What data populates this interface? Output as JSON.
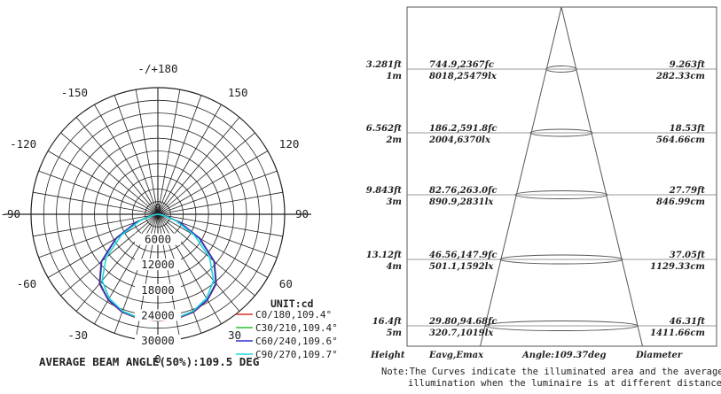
{
  "chart_data": [
    {
      "type": "polar",
      "angle_labels": [
        {
          "deg": 0,
          "text": "0"
        },
        {
          "deg": 30,
          "text": "30"
        },
        {
          "deg": 60,
          "text": "60"
        },
        {
          "deg": 90,
          "text": "90"
        },
        {
          "deg": 120,
          "text": "120"
        },
        {
          "deg": 150,
          "text": "150"
        },
        {
          "deg": 180,
          "text": "-/+180"
        },
        {
          "deg": -150,
          "text": "-150"
        },
        {
          "deg": -120,
          "text": "-120"
        },
        {
          "deg": -90,
          "text": "-90"
        },
        {
          "deg": -60,
          "text": "-60"
        },
        {
          "deg": -30,
          "text": "-30"
        }
      ],
      "radial_ticks": [
        6000,
        12000,
        18000,
        24000,
        30000
      ],
      "radial_tick_labels": [
        "6000",
        "12000",
        "18000",
        "24000",
        "30000"
      ],
      "rmax": 30000,
      "center_label": "0",
      "unit_label": "UNIT:cd",
      "series": [
        {
          "name": "C0/180,109.4°",
          "color": "#e0302a",
          "angles": [
            -90,
            -80,
            -70,
            -60,
            -50,
            -40,
            -30,
            -20,
            -10,
            0,
            10,
            20,
            30,
            40,
            50,
            60,
            70,
            80,
            90
          ],
          "values": [
            0,
            1500,
            5500,
            11500,
            17500,
            21500,
            23500,
            24700,
            25200,
            25300,
            25200,
            24700,
            23500,
            21500,
            17500,
            11500,
            5500,
            1500,
            0
          ]
        },
        {
          "name": "C30/210,109.4°",
          "color": "#2fbf2f",
          "angles": [
            -90,
            -80,
            -70,
            -60,
            -50,
            -40,
            -30,
            -20,
            -10,
            0,
            10,
            20,
            30,
            40,
            50,
            60,
            70,
            80,
            90
          ],
          "values": [
            0,
            1400,
            5300,
            11300,
            17300,
            21300,
            23400,
            24600,
            25100,
            25200,
            25100,
            24600,
            23400,
            21300,
            17300,
            11300,
            5300,
            1400,
            0
          ]
        },
        {
          "name": "C60/240,109.6°",
          "color": "#2a2fd0",
          "angles": [
            -90,
            -80,
            -70,
            -60,
            -50,
            -40,
            -30,
            -20,
            -10,
            0,
            10,
            20,
            30,
            40,
            50,
            60,
            70,
            80,
            90
          ],
          "values": [
            0,
            1400,
            5400,
            11400,
            17400,
            21400,
            23400,
            24600,
            25100,
            25200,
            25100,
            24600,
            23400,
            21400,
            17400,
            11400,
            5400,
            1400,
            0
          ]
        },
        {
          "name": "C90/270,109.7°",
          "color": "#22d6d6",
          "angles": [
            -90,
            -80,
            -70,
            -60,
            -50,
            -40,
            -30,
            -20,
            -10,
            0,
            10,
            20,
            30,
            40,
            50,
            60,
            70,
            80,
            90
          ],
          "values": [
            0,
            1000,
            4500,
            10000,
            16000,
            20500,
            23000,
            24400,
            25000,
            25200,
            25000,
            24400,
            23000,
            20500,
            16000,
            10000,
            4500,
            1000,
            0
          ]
        }
      ],
      "caption": "AVERAGE BEAM ANGLE(50%):109.5 DEG"
    },
    {
      "type": "table",
      "rows": [
        {
          "height_ft": "3.281ft",
          "height_m": "1m",
          "fc": "744.9,2367fc",
          "lx": "8018,25479lx",
          "diameter_ft": "9.263ft",
          "diameter_cm": "282.33cm"
        },
        {
          "height_ft": "6.562ft",
          "height_m": "2m",
          "fc": "186.2,591.8fc",
          "lx": "2004,6370lx",
          "diameter_ft": "18.53ft",
          "diameter_cm": "564.66cm"
        },
        {
          "height_ft": "9.843ft",
          "height_m": "3m",
          "fc": "82.76,263.0fc",
          "lx": "890.9,2831lx",
          "diameter_ft": "27.79ft",
          "diameter_cm": "846.99cm"
        },
        {
          "height_ft": "13.12ft",
          "height_m": "4m",
          "fc": "46.56,147.9fc",
          "lx": "501.1,1592lx",
          "diameter_ft": "37.05ft",
          "diameter_cm": "1129.33cm"
        },
        {
          "height_ft": "16.4ft",
          "height_m": "5m",
          "fc": "29.80,94.68fc",
          "lx": "320.7,1019lx",
          "diameter_ft": "46.31ft",
          "diameter_cm": "1411.66cm"
        }
      ],
      "footer": {
        "height": "Height",
        "eavg": "Eavg,Emax",
        "angle": "Angle:109.37deg",
        "diameter": "Diameter"
      },
      "note_line1": "Note:The Curves indicate the illuminated area and the average",
      "note_line2": "illumination when the luminaire is at different distance."
    }
  ]
}
